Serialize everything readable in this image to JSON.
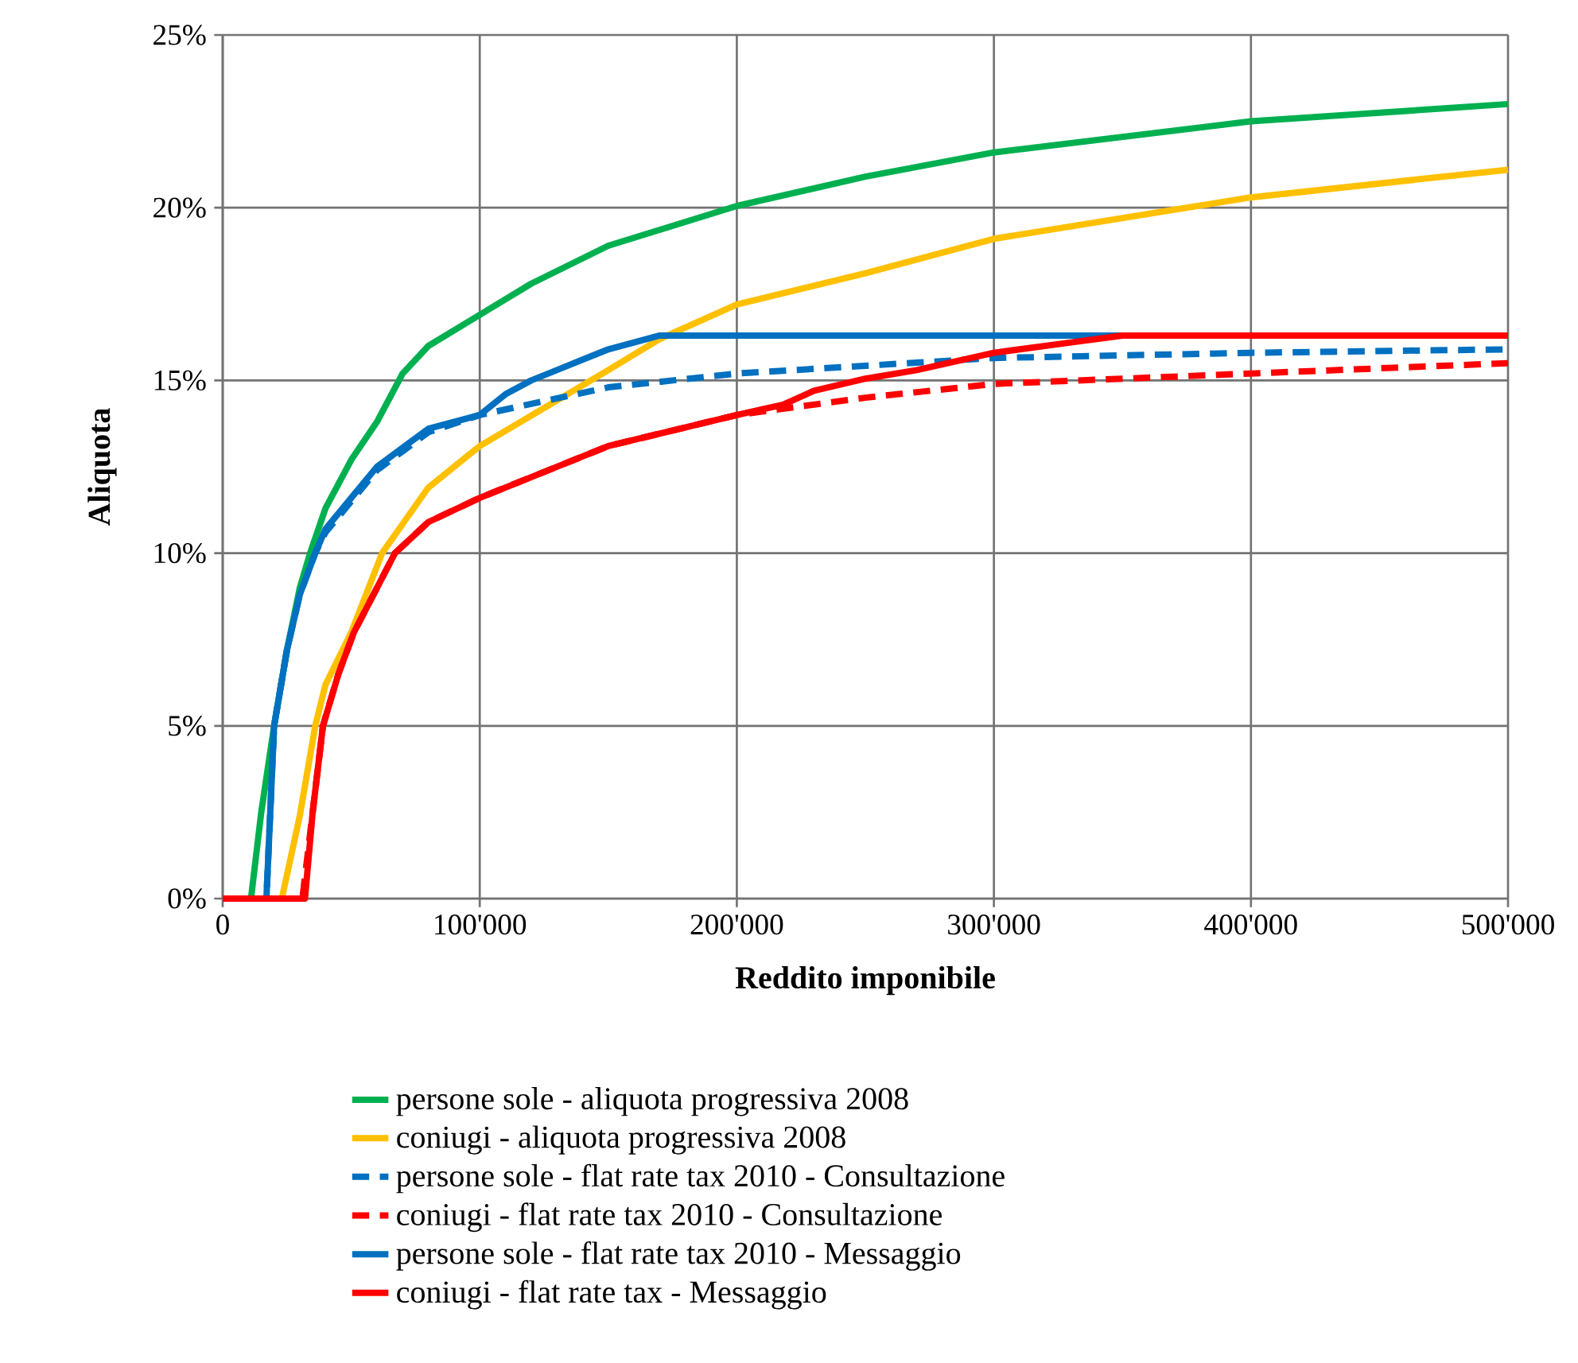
{
  "chart_data": {
    "type": "line",
    "xlabel": "Reddito imponibile",
    "ylabel": "Aliquota",
    "xlim": [
      0,
      500000
    ],
    "ylim": [
      0,
      25
    ],
    "xticks": [
      {
        "value": 0,
        "label": "0"
      },
      {
        "value": 100000,
        "label": "100'000"
      },
      {
        "value": 200000,
        "label": "200'000"
      },
      {
        "value": 300000,
        "label": "300'000"
      },
      {
        "value": 400000,
        "label": "400'000"
      },
      {
        "value": 500000,
        "label": "500'000"
      }
    ],
    "yticks": [
      {
        "value": 0,
        "label": "0%"
      },
      {
        "value": 5,
        "label": "5%"
      },
      {
        "value": 10,
        "label": "10%"
      },
      {
        "value": 15,
        "label": "15%"
      },
      {
        "value": 20,
        "label": "20%"
      },
      {
        "value": 25,
        "label": "25%"
      }
    ],
    "grid": true,
    "legend": "bottom",
    "series": [
      {
        "name": "persone sole - aliquota progressiva 2008",
        "color": "#00b050",
        "line_style": "solid",
        "x": [
          0,
          11000,
          15000,
          20000,
          25000,
          30000,
          34000,
          40000,
          50000,
          60000,
          70000,
          80000,
          100000,
          120000,
          150000,
          200000,
          250000,
          300000,
          400000,
          500000
        ],
        "values": [
          0,
          0,
          2.5,
          5,
          7.2,
          9.0,
          10,
          11.3,
          12.7,
          13.8,
          15.2,
          16.0,
          16.9,
          17.8,
          18.9,
          20.05,
          20.9,
          21.6,
          22.5,
          23.0
        ]
      },
      {
        "name": "coniugi - aliquota progressiva 2008",
        "color": "#ffc000",
        "line_style": "solid",
        "x": [
          0,
          23000,
          30000,
          36000,
          40000,
          50000,
          62000,
          80000,
          100000,
          150000,
          170000,
          200000,
          250000,
          300000,
          400000,
          500000
        ],
        "values": [
          0,
          0,
          2.4,
          5,
          6.2,
          7.7,
          10,
          11.9,
          13.1,
          15.3,
          16.2,
          17.2,
          18.1,
          19.1,
          20.3,
          21.1
        ]
      },
      {
        "name": "persone sole - flat rate tax 2010 - Consultazione",
        "color": "#0070c0",
        "line_style": "dashed",
        "x": [
          0,
          17000,
          20000,
          25000,
          30000,
          36000,
          40000,
          50000,
          60000,
          80000,
          100000,
          150000,
          200000,
          300000,
          400000,
          500000
        ],
        "values": [
          0,
          0,
          5,
          7.2,
          8.8,
          10,
          10.6,
          11.5,
          12.4,
          13.5,
          14.0,
          14.8,
          15.2,
          15.65,
          15.8,
          15.9
        ]
      },
      {
        "name": "coniugi - flat rate tax 2010 - Consultazione",
        "color": "#ff0000",
        "line_style": "dashed",
        "x": [
          0,
          31000,
          35000,
          39000,
          45000,
          51000,
          67000,
          80000,
          100000,
          150000,
          200000,
          250000,
          300000,
          400000,
          500000
        ],
        "values": [
          0,
          0,
          2.5,
          5,
          6.5,
          7.7,
          10,
          10.9,
          11.6,
          13.1,
          14.0,
          14.5,
          14.9,
          15.2,
          15.5
        ]
      },
      {
        "name": "persone sole - flat rate tax 2010 - Messaggio",
        "color": "#0070c0",
        "line_style": "solid",
        "x": [
          0,
          17000,
          20000,
          25000,
          30000,
          36000,
          40000,
          50000,
          60000,
          80000,
          100000,
          110000,
          120000,
          130000,
          140000,
          150000,
          160000,
          170000,
          350000
        ],
        "values": [
          0,
          0,
          5,
          7.2,
          8.8,
          10,
          10.7,
          11.6,
          12.5,
          13.6,
          14.0,
          14.6,
          15.0,
          15.3,
          15.6,
          15.9,
          16.1,
          16.3,
          16.3
        ]
      },
      {
        "name": "coniugi - flat rate tax - Messaggio",
        "color": "#ff0000",
        "line_style": "solid",
        "x": [
          0,
          32000,
          35000,
          39000,
          45000,
          51000,
          67000,
          80000,
          100000,
          150000,
          200000,
          218000,
          230000,
          250000,
          270000,
          300000,
          330000,
          350000,
          500000
        ],
        "values": [
          0,
          0,
          2.5,
          5,
          6.5,
          7.7,
          10,
          10.9,
          11.6,
          13.1,
          14.0,
          14.3,
          14.7,
          15.05,
          15.3,
          15.8,
          16.1,
          16.3,
          16.3
        ]
      }
    ]
  }
}
